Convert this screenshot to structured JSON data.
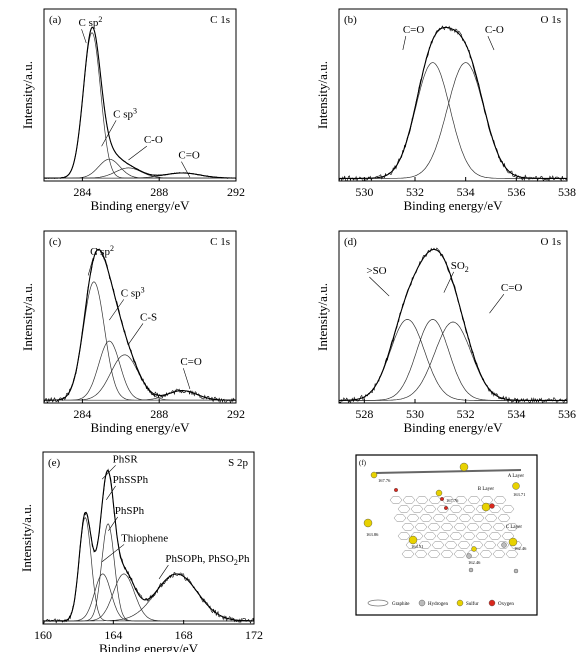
{
  "panels": [
    {
      "id": "a",
      "panel_label": "(a)",
      "element_label": "C 1s",
      "xlabel": "Binding energy/eV",
      "ylabel": "Intensity/a.u.",
      "xticks": [
        "284",
        "288",
        "292"
      ],
      "peak_labels": [
        {
          "text": "C sp",
          "sup": "2"
        },
        {
          "text": "C sp",
          "sup": "3"
        },
        {
          "text": "C-O",
          "sup": ""
        },
        {
          "text": "C=O",
          "sup": ""
        }
      ]
    },
    {
      "id": "b",
      "panel_label": "(b)",
      "element_label": "O 1s",
      "xlabel": "Binding energy/eV",
      "ylabel": "Intensity/a.u.",
      "xticks": [
        "530",
        "532",
        "534",
        "536",
        "538"
      ],
      "peak_labels": [
        {
          "text": "C=O",
          "sup": ""
        },
        {
          "text": "C-O",
          "sup": ""
        }
      ]
    },
    {
      "id": "c",
      "panel_label": "(c)",
      "element_label": "C 1s",
      "xlabel": "Binding energy/eV",
      "ylabel": "Intensity/a.u.",
      "xticks": [
        "284",
        "288",
        "292"
      ],
      "peak_labels": [
        {
          "text": "C sp",
          "sup": "2"
        },
        {
          "text": "C sp",
          "sup": "3"
        },
        {
          "text": "C-S",
          "sup": ""
        },
        {
          "text": "C=O",
          "sup": ""
        }
      ]
    },
    {
      "id": "d",
      "panel_label": "(d)",
      "element_label": "O 1s",
      "xlabel": "Binding energy/eV",
      "ylabel": "Intensity/a.u.",
      "xticks": [
        "528",
        "530",
        "532",
        "534",
        "536"
      ],
      "peak_labels": [
        {
          "text": ">SO",
          "sup": ""
        },
        {
          "text": "SO",
          "sub": "2"
        },
        {
          "text": "C=O",
          "sup": ""
        }
      ]
    },
    {
      "id": "e",
      "panel_label": "(e)",
      "element_label": "S 2p",
      "xlabel": "Binding energy/eV",
      "ylabel": "Intensity/a.u.",
      "xticks": [
        "160",
        "164",
        "168",
        "172"
      ],
      "peak_labels": [
        {
          "text": "PhSR",
          "sup": ""
        },
        {
          "text": "PhSSPh",
          "sup": ""
        },
        {
          "text": "PhSPh",
          "sup": ""
        },
        {
          "text": "Thiophene",
          "sup": ""
        },
        {
          "text": "PhSOPh, PhSO",
          "sub": "2",
          "tail": "Ph"
        }
      ]
    }
  ],
  "schematic": {
    "panel_label": "(f)",
    "layer_labels": [
      "A Layer",
      "B Layer",
      "C Layer"
    ],
    "distance_labels": [
      "167.76",
      "167.76",
      "163.71",
      "163.86",
      "164.51",
      "162.46",
      "162.46"
    ],
    "legend": [
      "Graphite",
      "Hydrogen",
      "Sulfur",
      "Oxygen"
    ],
    "colors": {
      "sulfur": "#e8d200",
      "oxygen": "#d9281e",
      "hydrogen": "#bbbbbb",
      "graphite": "#888888"
    }
  },
  "chart_data": [
    {
      "type": "line",
      "panel": "(a)",
      "title": "C 1s",
      "xlabel": "Binding energy/eV",
      "ylabel": "Intensity/a.u.",
      "xlim": [
        282,
        292
      ],
      "x_reversed": false,
      "grid": false,
      "components": [
        {
          "label": "C sp2",
          "center": 284.5,
          "fwhm": 1.05,
          "height": 1.0
        },
        {
          "label": "C sp3",
          "center": 285.4,
          "fwhm": 1.3,
          "height": 0.13
        },
        {
          "label": "C-O",
          "center": 286.4,
          "fwhm": 1.6,
          "height": 0.07
        },
        {
          "label": "C=O",
          "center": 289.2,
          "fwhm": 2.2,
          "height": 0.035
        }
      ]
    },
    {
      "type": "line",
      "panel": "(b)",
      "title": "O 1s",
      "xlabel": "Binding energy/eV",
      "ylabel": "Intensity/a.u.",
      "xlim": [
        529,
        538
      ],
      "grid": false,
      "components": [
        {
          "label": "C=O",
          "center": 532.7,
          "fwhm": 1.6,
          "height": 0.88
        },
        {
          "label": "C-O",
          "center": 534.0,
          "fwhm": 1.7,
          "height": 0.88
        }
      ]
    },
    {
      "type": "line",
      "panel": "(c)",
      "title": "C 1s",
      "xlabel": "Binding energy/eV",
      "ylabel": "Intensity/a.u.",
      "xlim": [
        282,
        292
      ],
      "grid": false,
      "components": [
        {
          "label": "C sp2",
          "center": 284.6,
          "fwhm": 1.3,
          "height": 0.86
        },
        {
          "label": "C sp3",
          "center": 285.4,
          "fwhm": 1.3,
          "height": 0.43
        },
        {
          "label": "C-S",
          "center": 286.2,
          "fwhm": 1.7,
          "height": 0.33
        },
        {
          "label": "C=O",
          "center": 289.2,
          "fwhm": 1.8,
          "height": 0.07
        }
      ]
    },
    {
      "type": "line",
      "panel": "(d)",
      "title": "O 1s",
      "xlabel": "Binding energy/eV",
      "ylabel": "Intensity/a.u.",
      "xlim": [
        527,
        536
      ],
      "grid": false,
      "components": [
        {
          "label": ">SO",
          "center": 529.7,
          "fwhm": 1.6,
          "height": 0.62
        },
        {
          "label": "SO2",
          "center": 530.7,
          "fwhm": 1.5,
          "height": 0.62
        },
        {
          "label": "C=O",
          "center": 531.5,
          "fwhm": 1.7,
          "height": 0.6
        }
      ]
    },
    {
      "type": "line",
      "panel": "(e)",
      "title": "S 2p",
      "xlabel": "Binding energy/eV",
      "ylabel": "Intensity/a.u.",
      "xlim": [
        160,
        172
      ],
      "grid": false,
      "components": [
        {
          "label": "PhSR",
          "center": 162.4,
          "fwhm": 0.8,
          "height": 0.66
        },
        {
          "label": "PhSSPh",
          "center": 163.7,
          "fwhm": 0.85,
          "height": 0.62
        },
        {
          "label": "PhSPh",
          "center": 163.4,
          "fwhm": 1.1,
          "height": 0.3
        },
        {
          "label": "Thiophene",
          "center": 164.6,
          "fwhm": 1.4,
          "height": 0.3
        },
        {
          "label": "PhSOPh, PhSO2Ph",
          "center": 167.6,
          "fwhm": 2.8,
          "height": 0.3
        }
      ]
    }
  ]
}
